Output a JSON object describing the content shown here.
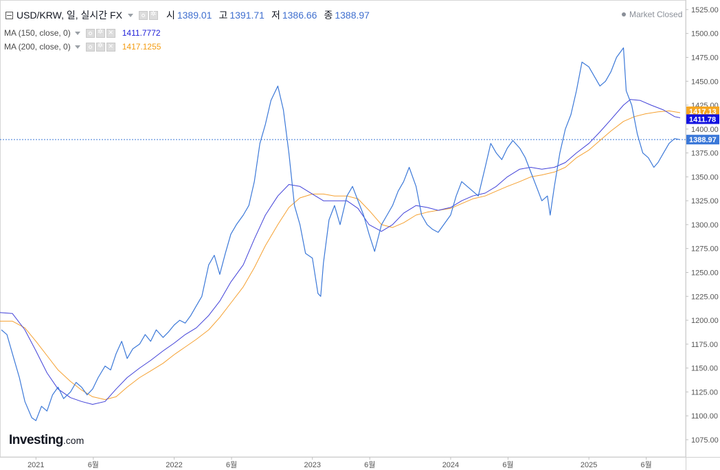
{
  "header": {
    "symbol": "USD/KRW, 일, 실시간 FX",
    "ohlc": [
      {
        "label": "시",
        "value": "1389.01"
      },
      {
        "label": "고",
        "value": "1391.71"
      },
      {
        "label": "저",
        "value": "1386.66"
      },
      {
        "label": "종",
        "value": "1388.97"
      }
    ],
    "market_status": "Market Closed"
  },
  "indicators": [
    {
      "label": "MA (150, close, 0)",
      "value": "1411.7772",
      "color": "#1d1dd8"
    },
    {
      "label": "MA (200, close, 0)",
      "value": "1417.1255",
      "color": "#f39c12"
    }
  ],
  "logo": {
    "main": "Investing",
    "suffix": ".com"
  },
  "colors": {
    "price": "#3b78d8",
    "ma150": "#4040d8",
    "ma200": "#f5a030",
    "last_price_label": "#3b78d8",
    "ma150_label": "#1212e0",
    "ma200_label": "#f5a623"
  },
  "chart_data": {
    "type": "line",
    "y_ticks": [
      "1075.00",
      "1100.00",
      "1125.00",
      "1150.00",
      "1175.00",
      "1200.00",
      "1225.00",
      "1250.00",
      "1275.00",
      "1300.00",
      "1325.00",
      "1350.00",
      "1375.00",
      "1400.00",
      "1425.00",
      "1450.00",
      "1475.00",
      "1500.00",
      "1525.00"
    ],
    "ylim": [
      1057,
      1535
    ],
    "xlim": [
      2020.74,
      2025.7
    ],
    "x_ticks": [
      {
        "label": "2021",
        "x": 2021.0
      },
      {
        "label": "6월",
        "x": 2021.415
      },
      {
        "label": "2022",
        "x": 2022.0
      },
      {
        "label": "6월",
        "x": 2022.415
      },
      {
        "label": "2023",
        "x": 2023.0
      },
      {
        "label": "6월",
        "x": 2023.415
      },
      {
        "label": "2024",
        "x": 2024.0
      },
      {
        "label": "6월",
        "x": 2024.415
      },
      {
        "label": "2025",
        "x": 2025.0
      },
      {
        "label": "6월",
        "x": 2025.415
      }
    ],
    "last_price": 1388.97,
    "axis_labels": [
      {
        "text": "1417.13",
        "value": 1417.13,
        "series": "ma200"
      },
      {
        "text": "1411.78",
        "value": 1411.78,
        "series": "ma150"
      },
      {
        "text": "1388.97",
        "value": 1388.97,
        "series": "price"
      }
    ],
    "series": [
      {
        "name": "USD/KRW",
        "key": "price",
        "points": [
          [
            2020.75,
            1190
          ],
          [
            2020.79,
            1185
          ],
          [
            2020.84,
            1160
          ],
          [
            2020.88,
            1140
          ],
          [
            2020.92,
            1115
          ],
          [
            2020.97,
            1098
          ],
          [
            2021.0,
            1095
          ],
          [
            2021.04,
            1110
          ],
          [
            2021.08,
            1105
          ],
          [
            2021.12,
            1122
          ],
          [
            2021.16,
            1130
          ],
          [
            2021.2,
            1118
          ],
          [
            2021.25,
            1125
          ],
          [
            2021.29,
            1135
          ],
          [
            2021.33,
            1130
          ],
          [
            2021.37,
            1122
          ],
          [
            2021.41,
            1128
          ],
          [
            2021.45,
            1140
          ],
          [
            2021.5,
            1152
          ],
          [
            2021.54,
            1148
          ],
          [
            2021.58,
            1165
          ],
          [
            2021.62,
            1178
          ],
          [
            2021.66,
            1160
          ],
          [
            2021.7,
            1170
          ],
          [
            2021.75,
            1175
          ],
          [
            2021.79,
            1185
          ],
          [
            2021.83,
            1178
          ],
          [
            2021.87,
            1190
          ],
          [
            2021.92,
            1182
          ],
          [
            2021.96,
            1188
          ],
          [
            2022.0,
            1195
          ],
          [
            2022.04,
            1200
          ],
          [
            2022.08,
            1197
          ],
          [
            2022.12,
            1205
          ],
          [
            2022.16,
            1215
          ],
          [
            2022.2,
            1225
          ],
          [
            2022.25,
            1258
          ],
          [
            2022.29,
            1268
          ],
          [
            2022.33,
            1248
          ],
          [
            2022.37,
            1270
          ],
          [
            2022.41,
            1290
          ],
          [
            2022.45,
            1300
          ],
          [
            2022.5,
            1310
          ],
          [
            2022.54,
            1320
          ],
          [
            2022.58,
            1345
          ],
          [
            2022.62,
            1385
          ],
          [
            2022.66,
            1405
          ],
          [
            2022.7,
            1430
          ],
          [
            2022.75,
            1445
          ],
          [
            2022.79,
            1420
          ],
          [
            2022.83,
            1375
          ],
          [
            2022.87,
            1320
          ],
          [
            2022.91,
            1300
          ],
          [
            2022.95,
            1270
          ],
          [
            2023.0,
            1265
          ],
          [
            2023.04,
            1228
          ],
          [
            2023.06,
            1225
          ],
          [
            2023.08,
            1260
          ],
          [
            2023.12,
            1305
          ],
          [
            2023.16,
            1320
          ],
          [
            2023.2,
            1300
          ],
          [
            2023.25,
            1330
          ],
          [
            2023.29,
            1340
          ],
          [
            2023.33,
            1325
          ],
          [
            2023.37,
            1310
          ],
          [
            2023.41,
            1290
          ],
          [
            2023.45,
            1272
          ],
          [
            2023.5,
            1300
          ],
          [
            2023.54,
            1310
          ],
          [
            2023.58,
            1320
          ],
          [
            2023.62,
            1335
          ],
          [
            2023.66,
            1345
          ],
          [
            2023.7,
            1360
          ],
          [
            2023.75,
            1340
          ],
          [
            2023.79,
            1310
          ],
          [
            2023.83,
            1300
          ],
          [
            2023.87,
            1295
          ],
          [
            2023.91,
            1292
          ],
          [
            2023.95,
            1300
          ],
          [
            2024.0,
            1310
          ],
          [
            2024.04,
            1330
          ],
          [
            2024.08,
            1345
          ],
          [
            2024.12,
            1340
          ],
          [
            2024.16,
            1335
          ],
          [
            2024.2,
            1330
          ],
          [
            2024.25,
            1360
          ],
          [
            2024.29,
            1385
          ],
          [
            2024.33,
            1375
          ],
          [
            2024.37,
            1368
          ],
          [
            2024.41,
            1380
          ],
          [
            2024.45,
            1388
          ],
          [
            2024.5,
            1380
          ],
          [
            2024.54,
            1370
          ],
          [
            2024.58,
            1355
          ],
          [
            2024.62,
            1340
          ],
          [
            2024.66,
            1325
          ],
          [
            2024.7,
            1330
          ],
          [
            2024.72,
            1310
          ],
          [
            2024.75,
            1340
          ],
          [
            2024.79,
            1375
          ],
          [
            2024.83,
            1400
          ],
          [
            2024.87,
            1415
          ],
          [
            2024.91,
            1440
          ],
          [
            2024.95,
            1470
          ],
          [
            2025.0,
            1465
          ],
          [
            2025.04,
            1455
          ],
          [
            2025.08,
            1445
          ],
          [
            2025.12,
            1450
          ],
          [
            2025.16,
            1460
          ],
          [
            2025.2,
            1475
          ],
          [
            2025.25,
            1485
          ],
          [
            2025.27,
            1440
          ],
          [
            2025.31,
            1425
          ],
          [
            2025.35,
            1395
          ],
          [
            2025.39,
            1375
          ],
          [
            2025.43,
            1370
          ],
          [
            2025.47,
            1360
          ],
          [
            2025.5,
            1365
          ],
          [
            2025.54,
            1375
          ],
          [
            2025.58,
            1385
          ],
          [
            2025.62,
            1390
          ],
          [
            2025.66,
            1388.97
          ]
        ]
      },
      {
        "name": "MA (150, close, 0)",
        "key": "ma150",
        "points": [
          [
            2020.74,
            1208
          ],
          [
            2020.83,
            1207
          ],
          [
            2020.92,
            1190
          ],
          [
            2021.0,
            1168
          ],
          [
            2021.08,
            1145
          ],
          [
            2021.16,
            1128
          ],
          [
            2021.25,
            1119
          ],
          [
            2021.33,
            1115
          ],
          [
            2021.41,
            1112
          ],
          [
            2021.5,
            1115
          ],
          [
            2021.58,
            1128
          ],
          [
            2021.66,
            1140
          ],
          [
            2021.75,
            1150
          ],
          [
            2021.83,
            1158
          ],
          [
            2021.92,
            1168
          ],
          [
            2022.0,
            1176
          ],
          [
            2022.08,
            1185
          ],
          [
            2022.16,
            1192
          ],
          [
            2022.25,
            1205
          ],
          [
            2022.33,
            1220
          ],
          [
            2022.41,
            1240
          ],
          [
            2022.5,
            1258
          ],
          [
            2022.58,
            1285
          ],
          [
            2022.66,
            1310
          ],
          [
            2022.75,
            1330
          ],
          [
            2022.83,
            1342
          ],
          [
            2022.91,
            1340
          ],
          [
            2023.0,
            1332
          ],
          [
            2023.08,
            1325
          ],
          [
            2023.16,
            1325
          ],
          [
            2023.25,
            1325
          ],
          [
            2023.33,
            1317
          ],
          [
            2023.41,
            1300
          ],
          [
            2023.5,
            1293
          ],
          [
            2023.58,
            1300
          ],
          [
            2023.66,
            1312
          ],
          [
            2023.75,
            1320
          ],
          [
            2023.83,
            1318
          ],
          [
            2023.91,
            1315
          ],
          [
            2024.0,
            1318
          ],
          [
            2024.08,
            1325
          ],
          [
            2024.16,
            1330
          ],
          [
            2024.25,
            1333
          ],
          [
            2024.33,
            1340
          ],
          [
            2024.41,
            1350
          ],
          [
            2024.5,
            1358
          ],
          [
            2024.58,
            1360
          ],
          [
            2024.66,
            1358
          ],
          [
            2024.75,
            1360
          ],
          [
            2024.83,
            1365
          ],
          [
            2024.91,
            1375
          ],
          [
            2025.0,
            1385
          ],
          [
            2025.08,
            1397
          ],
          [
            2025.16,
            1410
          ],
          [
            2025.25,
            1425
          ],
          [
            2025.3,
            1431
          ],
          [
            2025.37,
            1430
          ],
          [
            2025.45,
            1425
          ],
          [
            2025.54,
            1420
          ],
          [
            2025.62,
            1413
          ],
          [
            2025.66,
            1411.78
          ]
        ]
      },
      {
        "name": "MA (200, close, 0)",
        "key": "ma200",
        "points": [
          [
            2020.74,
            1199
          ],
          [
            2020.83,
            1199
          ],
          [
            2020.92,
            1192
          ],
          [
            2021.0,
            1178
          ],
          [
            2021.08,
            1163
          ],
          [
            2021.16,
            1148
          ],
          [
            2021.25,
            1136
          ],
          [
            2021.33,
            1127
          ],
          [
            2021.41,
            1120
          ],
          [
            2021.5,
            1117
          ],
          [
            2021.58,
            1120
          ],
          [
            2021.66,
            1130
          ],
          [
            2021.75,
            1140
          ],
          [
            2021.83,
            1147
          ],
          [
            2021.92,
            1155
          ],
          [
            2022.0,
            1164
          ],
          [
            2022.08,
            1172
          ],
          [
            2022.16,
            1180
          ],
          [
            2022.25,
            1190
          ],
          [
            2022.33,
            1203
          ],
          [
            2022.41,
            1218
          ],
          [
            2022.5,
            1235
          ],
          [
            2022.58,
            1255
          ],
          [
            2022.66,
            1278
          ],
          [
            2022.75,
            1300
          ],
          [
            2022.83,
            1318
          ],
          [
            2022.91,
            1328
          ],
          [
            2023.0,
            1332
          ],
          [
            2023.08,
            1332
          ],
          [
            2023.16,
            1330
          ],
          [
            2023.25,
            1330
          ],
          [
            2023.33,
            1327
          ],
          [
            2023.41,
            1315
          ],
          [
            2023.5,
            1300
          ],
          [
            2023.58,
            1297
          ],
          [
            2023.66,
            1302
          ],
          [
            2023.75,
            1310
          ],
          [
            2023.83,
            1313
          ],
          [
            2023.91,
            1315
          ],
          [
            2024.0,
            1317
          ],
          [
            2024.08,
            1322
          ],
          [
            2024.16,
            1327
          ],
          [
            2024.25,
            1330
          ],
          [
            2024.33,
            1335
          ],
          [
            2024.41,
            1340
          ],
          [
            2024.5,
            1345
          ],
          [
            2024.58,
            1350
          ],
          [
            2024.66,
            1352
          ],
          [
            2024.75,
            1355
          ],
          [
            2024.83,
            1360
          ],
          [
            2024.91,
            1370
          ],
          [
            2025.0,
            1378
          ],
          [
            2025.08,
            1388
          ],
          [
            2025.16,
            1398
          ],
          [
            2025.25,
            1408
          ],
          [
            2025.33,
            1413
          ],
          [
            2025.41,
            1416
          ],
          [
            2025.5,
            1418
          ],
          [
            2025.58,
            1419
          ],
          [
            2025.66,
            1417.13
          ]
        ]
      }
    ]
  }
}
